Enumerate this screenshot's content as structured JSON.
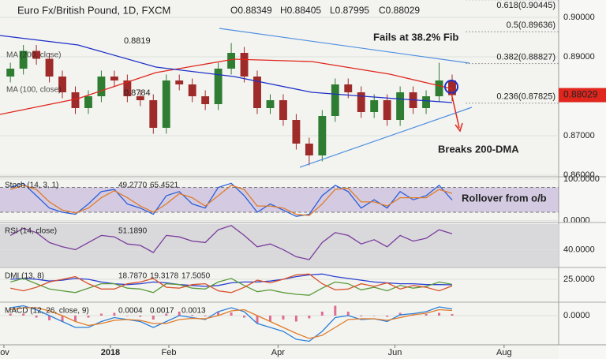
{
  "chart_data": [
    {
      "type": "candlestick",
      "title": "Euro Fx/British Pound, 1D, FXCM",
      "ohlc_labels": [
        "O0.88349",
        "H0.88405",
        "L0.87995",
        "C0.88029"
      ],
      "x": [
        4,
        9,
        14,
        19,
        24,
        29,
        34,
        39,
        44,
        49,
        54,
        59,
        64,
        69,
        74,
        79,
        84,
        89,
        94,
        99,
        104,
        109,
        114,
        119,
        124,
        129,
        134,
        139,
        144,
        149,
        154,
        159,
        164,
        169,
        174
      ],
      "open": [
        0.885,
        0.887,
        0.8915,
        0.8895,
        0.885,
        0.881,
        0.877,
        0.88,
        0.885,
        0.884,
        0.88,
        0.879,
        0.872,
        0.884,
        0.883,
        0.88,
        0.878,
        0.887,
        0.891,
        0.885,
        0.877,
        0.879,
        0.874,
        0.868,
        0.865,
        0.875,
        0.883,
        0.881,
        0.876,
        0.879,
        0.874,
        0.881,
        0.877,
        0.88,
        0.884
      ],
      "high": [
        0.8885,
        0.893,
        0.893,
        0.891,
        0.8865,
        0.8825,
        0.8815,
        0.8865,
        0.8865,
        0.8855,
        0.8815,
        0.8805,
        0.8855,
        0.8855,
        0.8845,
        0.8815,
        0.8885,
        0.8935,
        0.8925,
        0.8865,
        0.8805,
        0.8805,
        0.8755,
        0.8695,
        0.8765,
        0.8845,
        0.8845,
        0.8825,
        0.8805,
        0.8805,
        0.8825,
        0.8825,
        0.8815,
        0.8885,
        0.8855
      ],
      "low": [
        0.8835,
        0.8855,
        0.888,
        0.8835,
        0.8795,
        0.8755,
        0.8755,
        0.8785,
        0.8825,
        0.8785,
        0.8775,
        0.8705,
        0.8705,
        0.8815,
        0.8785,
        0.8765,
        0.8765,
        0.8855,
        0.8835,
        0.8755,
        0.8755,
        0.8725,
        0.8665,
        0.8625,
        0.8635,
        0.8735,
        0.8795,
        0.8745,
        0.8745,
        0.8725,
        0.8725,
        0.8755,
        0.8755,
        0.8785,
        0.8788
      ],
      "close": [
        0.887,
        0.8915,
        0.8895,
        0.885,
        0.881,
        0.877,
        0.88,
        0.885,
        0.884,
        0.88,
        0.879,
        0.872,
        0.884,
        0.883,
        0.88,
        0.878,
        0.887,
        0.891,
        0.885,
        0.877,
        0.879,
        0.874,
        0.868,
        0.865,
        0.875,
        0.883,
        0.881,
        0.876,
        0.879,
        0.874,
        0.881,
        0.877,
        0.88,
        0.884,
        0.88029
      ],
      "up_color": "#2e7d32",
      "down_color": "#9e2a2a",
      "overlays": [
        {
          "name": "MA (200, close)",
          "color": "#e0261d",
          "x": [
            0,
            30,
            60,
            90,
            120,
            150,
            174
          ],
          "values": [
            0.8754,
            0.8794,
            0.886,
            0.8894,
            0.8888,
            0.8856,
            0.8819
          ],
          "value_label": "0.8819"
        },
        {
          "name": "MA (100, close)",
          "color": "#1f2fc8",
          "x": [
            0,
            30,
            60,
            90,
            120,
            150,
            174
          ],
          "values": [
            0.8954,
            0.893,
            0.8874,
            0.885,
            0.881,
            0.8795,
            0.8784
          ],
          "value_label": "0.8784"
        }
      ],
      "fib_levels": [
        {
          "label": "0.618(0.90445)",
          "value": 0.90445,
          "color": "#555555"
        },
        {
          "label": "0.5(0.89636)",
          "value": 0.89636,
          "color": "#4a8f3a"
        },
        {
          "label": "0.382(0.88827)",
          "value": 0.88827,
          "color": "#333333"
        },
        {
          "label": "0.236(0.87825)",
          "value": 0.87825,
          "color": "#333333"
        }
      ],
      "last_price": 0.88029,
      "annotations": [
        "Fails at 38.2% Fib",
        "Breaks 200-DMA"
      ],
      "xlim": [
        0,
        215
      ],
      "xticks": [
        {
          "value": 1.5,
          "label": "ov"
        },
        {
          "value": 42.5,
          "label": "2018"
        },
        {
          "value": 65,
          "label": "Feb"
        },
        {
          "value": 107,
          "label": "Apr"
        },
        {
          "value": 152,
          "label": "Jun"
        },
        {
          "value": 194,
          "label": "Aug"
        }
      ],
      "ylim": [
        0.86,
        0.9044
      ],
      "yticks": [
        {
          "value": 0.9,
          "label": "0.90000"
        },
        {
          "value": 0.89,
          "label": "0.89000"
        },
        {
          "value": 0.87,
          "label": "0.87000"
        },
        {
          "value": 0.86,
          "label": "0.86000"
        }
      ]
    },
    {
      "type": "line",
      "title": "Stoch (14, 3, 1)",
      "band": [
        20,
        80
      ],
      "band_color": "#9b7fc8",
      "annotations": [
        "Rollover from o/b"
      ],
      "series": [
        {
          "name": "K",
          "color": "#2b5fd9",
          "value_label": "49.2770",
          "values": [
            80,
            90,
            60,
            30,
            20,
            15,
            40,
            70,
            75,
            40,
            30,
            15,
            60,
            70,
            40,
            30,
            80,
            90,
            60,
            20,
            40,
            25,
            10,
            15,
            60,
            85,
            70,
            30,
            50,
            30,
            70,
            50,
            60,
            85,
            49.277
          ]
        },
        {
          "name": "D",
          "color": "#e07b28",
          "value_label": "65.4521",
          "values": [
            75,
            85,
            75,
            45,
            25,
            18,
            30,
            55,
            72,
            55,
            35,
            20,
            40,
            65,
            55,
            35,
            60,
            85,
            75,
            35,
            35,
            30,
            15,
            12,
            40,
            75,
            78,
            45,
            45,
            35,
            55,
            55,
            55,
            75,
            65.4521
          ]
        }
      ],
      "ylim": [
        -3,
        102
      ],
      "yticks": [
        {
          "value": 100,
          "label": "100.0000"
        },
        {
          "value": 0,
          "label": "0.0000"
        }
      ]
    },
    {
      "type": "line",
      "title": "RSI (14, close)",
      "background": "#d9d9dc",
      "series": [
        {
          "name": "RSI",
          "color": "#7b3c9c",
          "value_label": "51.1890",
          "values": [
            50,
            55,
            52,
            45,
            42,
            40,
            45,
            50,
            49,
            44,
            43,
            38,
            50,
            49,
            46,
            45,
            54,
            57,
            50,
            42,
            44,
            40,
            35,
            33,
            45,
            52,
            50,
            44,
            47,
            42,
            50,
            46,
            48,
            54,
            51.189
          ]
        }
      ],
      "ylim": [
        28,
        58
      ],
      "yticks": [
        {
          "value": 40,
          "label": "40.0000"
        }
      ]
    },
    {
      "type": "line",
      "title": "DMI (13, 8)",
      "series": [
        {
          "name": "ADX",
          "color": "#2b3fd0",
          "value_label": "18.7870",
          "values": [
            25,
            26,
            25,
            23,
            24,
            26,
            25,
            22,
            20,
            19,
            20,
            22,
            21,
            19,
            18,
            17,
            18,
            21,
            22,
            22,
            23,
            25,
            28,
            30,
            31,
            28,
            26,
            24,
            22,
            21,
            20,
            20,
            19,
            19,
            18.787
          ]
        },
        {
          "name": "+DI",
          "color": "#5a9a3a",
          "value_label": "19.3178",
          "values": [
            22,
            26,
            20,
            14,
            12,
            10,
            15,
            20,
            20,
            15,
            14,
            10,
            20,
            19,
            15,
            14,
            22,
            26,
            18,
            11,
            13,
            10,
            8,
            7,
            15,
            22,
            20,
            13,
            16,
            12,
            18,
            15,
            17,
            22,
            19.3178
          ]
        },
        {
          "name": "-DI",
          "color": "#d9532c",
          "value_label": "17.5050",
          "values": [
            15,
            12,
            16,
            22,
            25,
            28,
            20,
            14,
            14,
            20,
            22,
            26,
            16,
            15,
            19,
            20,
            12,
            10,
            16,
            24,
            21,
            25,
            30,
            31,
            20,
            13,
            14,
            20,
            17,
            21,
            14,
            18,
            16,
            12,
            17.505
          ]
        }
      ],
      "ylim": [
        0,
        36.6
      ],
      "yticks": [
        {
          "value": 25,
          "label": "25.0000"
        }
      ]
    },
    {
      "type": "line",
      "title": "MACD (12, 26, close, 9)",
      "series": [
        {
          "name": "Histogram",
          "style": "histogram",
          "color": "#d6336c",
          "value_label": "0.0004",
          "values": [
            0.0005,
            0.0005,
            -0.0005,
            -0.0012,
            -0.0015,
            -0.0015,
            -0.0005,
            0.0005,
            0.0007,
            0,
            -0.0003,
            -0.001,
            0.0005,
            0.001,
            0.0002,
            -0.0002,
            0.001,
            0.0008,
            -0.0005,
            -0.002,
            -0.0015,
            -0.001,
            -0.0015,
            -0.0007,
            0.001,
            0.0025,
            0.001,
            -0.0002,
            0,
            -0.0003,
            0.0007,
            0.0003,
            0.0004,
            0.0007,
            0.0004
          ]
        },
        {
          "name": "MACD",
          "color": "#2b7fd9",
          "value_label": "0.0017",
          "values": [
            0.002,
            0.0025,
            0.0015,
            0,
            -0.0015,
            -0.003,
            -0.003,
            -0.0015,
            -0.0005,
            -0.001,
            -0.0015,
            -0.003,
            -0.0015,
            0,
            -0.0005,
            -0.001,
            0.001,
            0.002,
            0.001,
            -0.002,
            -0.003,
            -0.004,
            -0.006,
            -0.0065,
            -0.004,
            -0.0005,
            0,
            -0.001,
            -0.0008,
            -0.0015,
            0.0002,
            0.0005,
            0.001,
            0.0022,
            0.0017
          ]
        },
        {
          "name": "Signal",
          "color": "#e07b28",
          "value_label": "0.0013",
          "values": [
            0.0015,
            0.002,
            0.002,
            0.0012,
            0,
            -0.0015,
            -0.0025,
            -0.002,
            -0.0012,
            -0.001,
            -0.0012,
            -0.002,
            -0.002,
            -0.001,
            -0.0007,
            -0.0008,
            0,
            0.0012,
            0.0015,
            0,
            -0.0015,
            -0.003,
            -0.0045,
            -0.0058,
            -0.005,
            -0.003,
            -0.001,
            -0.0008,
            -0.0008,
            -0.0012,
            -0.0005,
            0.0002,
            0.0006,
            0.0015,
            0.0013
          ]
        }
      ],
      "ylim": [
        -0.007,
        0.003
      ],
      "yticks": [
        {
          "value": 0,
          "label": "0.0000"
        }
      ]
    }
  ]
}
